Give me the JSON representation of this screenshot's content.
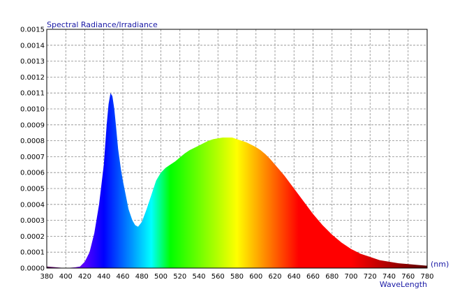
{
  "chart_data": {
    "type": "area",
    "title": "Spectral Radiance/Irradiance",
    "xlabel": "WaveLength",
    "x_unit": "(nm)",
    "ylabel": "",
    "xlim": [
      380,
      780
    ],
    "ylim": [
      0,
      0.0015
    ],
    "grid": true,
    "fill": "visible-spectrum gradient",
    "x_ticks": [
      "380",
      "400",
      "420",
      "440",
      "460",
      "480",
      "500",
      "520",
      "540",
      "560",
      "580",
      "600",
      "620",
      "640",
      "660",
      "680",
      "700",
      "720",
      "740",
      "760",
      "780"
    ],
    "y_ticks": [
      "0.0000",
      "0.0001",
      "0.0002",
      "0.0003",
      "0.0004",
      "0.0005",
      "0.0006",
      "0.0007",
      "0.0008",
      "0.0009",
      "0.0010",
      "0.0011",
      "0.0012",
      "0.0013",
      "0.0014",
      "0.0015"
    ],
    "series": [
      {
        "x": [
          380,
          400,
          410,
          415,
          420,
          425,
          430,
          435,
          440,
          443,
          445,
          447,
          449,
          451,
          453,
          455,
          458,
          460,
          463,
          466,
          470,
          473,
          476,
          480,
          485,
          490,
          495,
          500,
          505,
          510,
          515,
          520,
          525,
          530,
          535,
          540,
          545,
          550,
          555,
          560,
          565,
          570,
          575,
          580,
          585,
          590,
          595,
          600,
          605,
          610,
          615,
          620,
          630,
          640,
          650,
          660,
          670,
          680,
          690,
          700,
          710,
          720,
          730,
          740,
          750,
          760,
          770,
          780
        ],
        "y": [
          1e-05,
          0.0,
          5e-06,
          1e-05,
          4e-05,
          0.0001,
          0.00022,
          0.0004,
          0.00065,
          0.0009,
          0.00103,
          0.0011,
          0.00108,
          0.001,
          0.00088,
          0.00075,
          0.00062,
          0.00055,
          0.00046,
          0.00037,
          0.0003,
          0.00027,
          0.00026,
          0.00029,
          0.00037,
          0.00046,
          0.00055,
          0.0006,
          0.00063,
          0.00065,
          0.00067,
          0.000695,
          0.00072,
          0.00074,
          0.000755,
          0.00077,
          0.000785,
          0.0008,
          0.00081,
          0.000815,
          0.00082,
          0.00082,
          0.00082,
          0.00081,
          0.0008,
          0.00079,
          0.000775,
          0.00076,
          0.00074,
          0.000715,
          0.000685,
          0.00065,
          0.00058,
          0.0005,
          0.00042,
          0.00034,
          0.00027,
          0.00021,
          0.00016,
          0.00012,
          9e-05,
          7e-05,
          5e-05,
          4e-05,
          3e-05,
          2.5e-05,
          2e-05,
          1.5e-05
        ]
      }
    ]
  }
}
